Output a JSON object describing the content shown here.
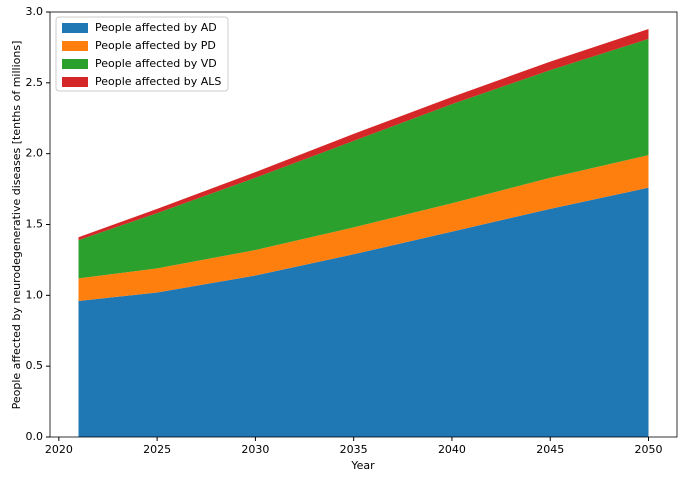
{
  "chart_data": {
    "type": "stacked-area",
    "x_label": "Year",
    "y_label": "People affected by neurodegenerative diseases [tenths of millions]",
    "x": [
      2021,
      2025,
      2030,
      2035,
      2040,
      2045,
      2050
    ],
    "series": [
      {
        "name": "People affected by AD",
        "color": "#1f77b4",
        "values": [
          0.96,
          1.02,
          1.14,
          1.29,
          1.45,
          1.61,
          1.76
        ]
      },
      {
        "name": "People affected by PD",
        "color": "#ff7f0e",
        "values": [
          0.16,
          0.17,
          0.18,
          0.19,
          0.2,
          0.22,
          0.23
        ]
      },
      {
        "name": "People affected by VD",
        "color": "#2ca02c",
        "values": [
          0.27,
          0.39,
          0.51,
          0.61,
          0.7,
          0.76,
          0.82
        ]
      },
      {
        "name": "People affected by ALS",
        "color": "#d62728",
        "values": [
          0.02,
          0.03,
          0.04,
          0.05,
          0.05,
          0.06,
          0.07
        ]
      }
    ],
    "xlim": [
      2019.55,
      2051.45
    ],
    "xticks": [
      2020,
      2025,
      2030,
      2035,
      2040,
      2045,
      2050
    ],
    "ylim": [
      0,
      3
    ],
    "yticks": [
      {
        "value": 0,
        "label": "0.0"
      },
      0.5,
      {
        "value": 1,
        "label": "1.0"
      },
      1.5,
      {
        "value": 2,
        "label": "2.0"
      },
      2.5,
      {
        "value": 3,
        "label": "3.0"
      }
    ],
    "legend": "upper left"
  }
}
